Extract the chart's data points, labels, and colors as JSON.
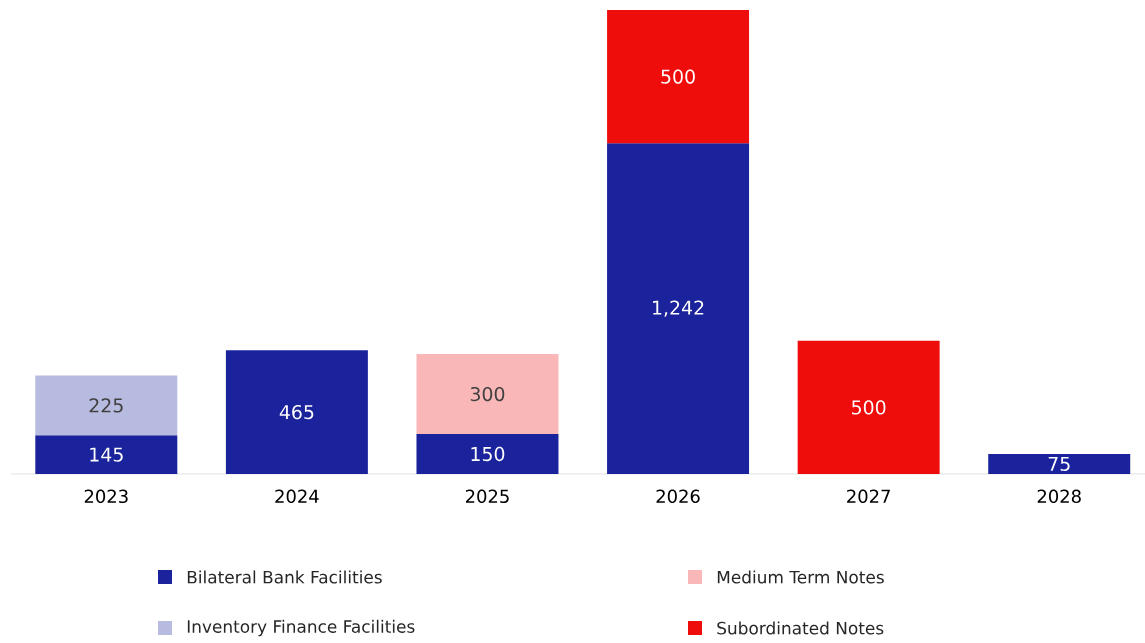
{
  "chart_data": {
    "type": "bar",
    "stacked": true,
    "legend": "bottom",
    "categories": [
      "2023",
      "2024",
      "2025",
      "2026",
      "2027",
      "2028"
    ],
    "series": [
      {
        "name": "Bilateral Bank Facilities",
        "color": "#1a239b",
        "values": [
          145,
          465,
          150,
          1242,
          null,
          75
        ],
        "value_labels": [
          "145",
          "465",
          "150",
          "1,242",
          null,
          "75"
        ]
      },
      {
        "name": "Inventory Finance Facilities",
        "color": "#b8bbe0",
        "values": [
          225,
          null,
          null,
          null,
          null,
          null
        ],
        "value_labels": [
          "225",
          null,
          null,
          null,
          null,
          null
        ]
      },
      {
        "name": "Medium Term Notes",
        "color": "#f9b8b7",
        "values": [
          null,
          null,
          300,
          null,
          null,
          null
        ],
        "value_labels": [
          null,
          null,
          "300",
          null,
          null,
          null
        ]
      },
      {
        "name": "Subordinated Notes",
        "color": "#ee0d0b",
        "values": [
          null,
          null,
          null,
          500,
          500,
          null
        ],
        "value_labels": [
          null,
          null,
          null,
          "500",
          "500",
          null
        ]
      }
    ]
  }
}
